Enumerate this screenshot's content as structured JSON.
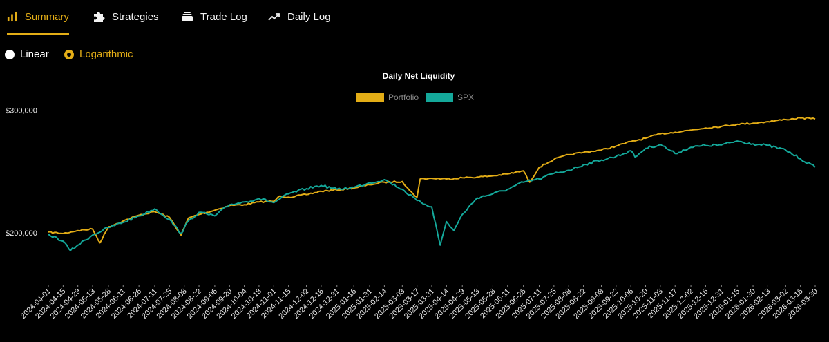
{
  "tabs": [
    {
      "label": "Summary",
      "icon": "bar-chart-icon",
      "active": true
    },
    {
      "label": "Strategies",
      "icon": "puzzle-icon",
      "active": false
    },
    {
      "label": "Trade Log",
      "icon": "layers-icon",
      "active": false
    },
    {
      "label": "Daily Log",
      "icon": "trend-up-icon",
      "active": false
    }
  ],
  "scale_toggle": {
    "linear_label": "Linear",
    "log_label": "Logarithmic",
    "selected": "Logarithmic"
  },
  "colors": {
    "accent": "#e3ad16",
    "portfolio": "#e3ad16",
    "spx": "#14a89a",
    "background": "#000000"
  },
  "chart_data": {
    "type": "line",
    "title": "Daily Net Liquidity",
    "y_scale": "log",
    "ylim": [
      170000,
      330000
    ],
    "y_ticks": [
      {
        "value": 200000,
        "label": "$200,000"
      },
      {
        "value": 300000,
        "label": "$300,000"
      }
    ],
    "x_range": [
      "2024-04-01",
      "2026-03-30"
    ],
    "x_ticks": [
      "2024-04-01",
      "2024-04-15",
      "2024-04-29",
      "2024-05-13",
      "2024-05-28",
      "2024-06-11",
      "2024-06-26",
      "2024-07-11",
      "2024-07-25",
      "2024-08-08",
      "2024-08-22",
      "2024-09-06",
      "2024-09-20",
      "2024-10-04",
      "2024-10-18",
      "2024-11-01",
      "2024-11-15",
      "2024-12-02",
      "2024-12-16",
      "2024-12-31",
      "2025-01-16",
      "2025-01-31",
      "2025-02-14",
      "2025-03-03",
      "2025-03-17",
      "2025-03-31",
      "2025-04-14",
      "2025-04-29",
      "2025-05-13",
      "2025-05-28",
      "2025-06-11",
      "2025-06-26",
      "2025-07-11",
      "2025-07-25",
      "2025-08-08",
      "2025-08-22",
      "2025-09-08",
      "2025-09-22",
      "2025-10-06",
      "2025-10-20",
      "2025-11-03",
      "2025-11-17",
      "2025-12-02",
      "2025-12-16",
      "2025-12-31",
      "2026-01-15",
      "2026-01-30",
      "2026-02-13",
      "2026-03-02",
      "2026-03-16",
      "2026-03-30"
    ],
    "legend": {
      "placement": "top-center"
    },
    "grid": false,
    "series": [
      {
        "name": "Portfolio",
        "color": "#e3ad16",
        "points": [
          [
            "2024-04-01",
            200500
          ],
          [
            "2024-04-15",
            199500
          ],
          [
            "2024-04-29",
            201500
          ],
          [
            "2024-05-13",
            202500
          ],
          [
            "2024-05-20",
            193500
          ],
          [
            "2024-05-28",
            204000
          ],
          [
            "2024-06-11",
            208000
          ],
          [
            "2024-06-26",
            212000
          ],
          [
            "2024-07-11",
            214500
          ],
          [
            "2024-07-25",
            210500
          ],
          [
            "2024-08-05",
            198500
          ],
          [
            "2024-08-12",
            210000
          ],
          [
            "2024-08-22",
            212500
          ],
          [
            "2024-09-06",
            215500
          ],
          [
            "2024-09-20",
            219000
          ],
          [
            "2024-10-04",
            219500
          ],
          [
            "2024-10-18",
            221500
          ],
          [
            "2024-11-01",
            222000
          ],
          [
            "2024-11-07",
            226000
          ],
          [
            "2024-11-15",
            225000
          ],
          [
            "2024-12-02",
            227000
          ],
          [
            "2024-12-16",
            229500
          ],
          [
            "2024-12-31",
            230500
          ],
          [
            "2025-01-16",
            232000
          ],
          [
            "2025-01-31",
            234500
          ],
          [
            "2025-02-14",
            236500
          ],
          [
            "2025-03-03",
            237000
          ],
          [
            "2025-03-10",
            230000
          ],
          [
            "2025-03-17",
            225000
          ],
          [
            "2025-03-20",
            239000
          ],
          [
            "2025-03-31",
            239500
          ],
          [
            "2025-04-14",
            239000
          ],
          [
            "2025-04-29",
            240000
          ],
          [
            "2025-05-13",
            240500
          ],
          [
            "2025-05-28",
            241500
          ],
          [
            "2025-06-11",
            243000
          ],
          [
            "2025-06-26",
            245500
          ],
          [
            "2025-07-02",
            236500
          ],
          [
            "2025-07-11",
            248500
          ],
          [
            "2025-07-25",
            255000
          ],
          [
            "2025-08-08",
            259000
          ],
          [
            "2025-08-22",
            261000
          ],
          [
            "2025-09-08",
            263000
          ],
          [
            "2025-09-22",
            266500
          ],
          [
            "2025-10-06",
            270500
          ],
          [
            "2025-10-20",
            273500
          ],
          [
            "2025-11-03",
            277500
          ],
          [
            "2025-11-17",
            279000
          ],
          [
            "2025-12-02",
            281000
          ],
          [
            "2025-12-16",
            283000
          ],
          [
            "2025-12-31",
            284500
          ],
          [
            "2026-01-15",
            286500
          ],
          [
            "2026-01-30",
            287500
          ],
          [
            "2026-02-13",
            289000
          ],
          [
            "2026-03-02",
            291000
          ],
          [
            "2026-03-16",
            292500
          ],
          [
            "2026-03-30",
            291500
          ]
        ]
      },
      {
        "name": "SPX",
        "color": "#14a89a",
        "points": [
          [
            "2024-04-01",
            199000
          ],
          [
            "2024-04-15",
            194500
          ],
          [
            "2024-04-22",
            188500
          ],
          [
            "2024-04-29",
            192000
          ],
          [
            "2024-05-13",
            198500
          ],
          [
            "2024-05-28",
            203500
          ],
          [
            "2024-06-11",
            207000
          ],
          [
            "2024-06-26",
            211500
          ],
          [
            "2024-07-11",
            216500
          ],
          [
            "2024-07-25",
            209000
          ],
          [
            "2024-08-05",
            199500
          ],
          [
            "2024-08-12",
            208000
          ],
          [
            "2024-08-22",
            214000
          ],
          [
            "2024-09-06",
            211500
          ],
          [
            "2024-09-20",
            219500
          ],
          [
            "2024-10-04",
            221500
          ],
          [
            "2024-10-18",
            224000
          ],
          [
            "2024-11-01",
            221000
          ],
          [
            "2024-11-15",
            227500
          ],
          [
            "2024-12-02",
            231500
          ],
          [
            "2024-12-16",
            234000
          ],
          [
            "2024-12-31",
            231000
          ],
          [
            "2025-01-16",
            232500
          ],
          [
            "2025-01-31",
            236000
          ],
          [
            "2025-02-14",
            238500
          ],
          [
            "2025-03-03",
            231000
          ],
          [
            "2025-03-17",
            222500
          ],
          [
            "2025-03-31",
            218000
          ],
          [
            "2025-04-08",
            192000
          ],
          [
            "2025-04-14",
            207500
          ],
          [
            "2025-04-21",
            201500
          ],
          [
            "2025-04-29",
            212500
          ],
          [
            "2025-05-13",
            224500
          ],
          [
            "2025-05-28",
            227500
          ],
          [
            "2025-06-11",
            231000
          ],
          [
            "2025-06-26",
            236500
          ],
          [
            "2025-07-11",
            239000
          ],
          [
            "2025-07-25",
            243500
          ],
          [
            "2025-08-08",
            246000
          ],
          [
            "2025-08-22",
            250500
          ],
          [
            "2025-09-08",
            254500
          ],
          [
            "2025-09-22",
            257500
          ],
          [
            "2025-10-06",
            262500
          ],
          [
            "2025-10-10",
            257000
          ],
          [
            "2025-10-20",
            264500
          ],
          [
            "2025-11-03",
            268000
          ],
          [
            "2025-11-17",
            260000
          ],
          [
            "2025-12-02",
            265500
          ],
          [
            "2025-12-16",
            267000
          ],
          [
            "2025-12-31",
            267500
          ],
          [
            "2026-01-15",
            271000
          ],
          [
            "2026-01-30",
            268500
          ],
          [
            "2026-02-13",
            267000
          ],
          [
            "2026-03-02",
            263000
          ],
          [
            "2026-03-16",
            255500
          ],
          [
            "2026-03-30",
            248500
          ]
        ]
      }
    ]
  }
}
